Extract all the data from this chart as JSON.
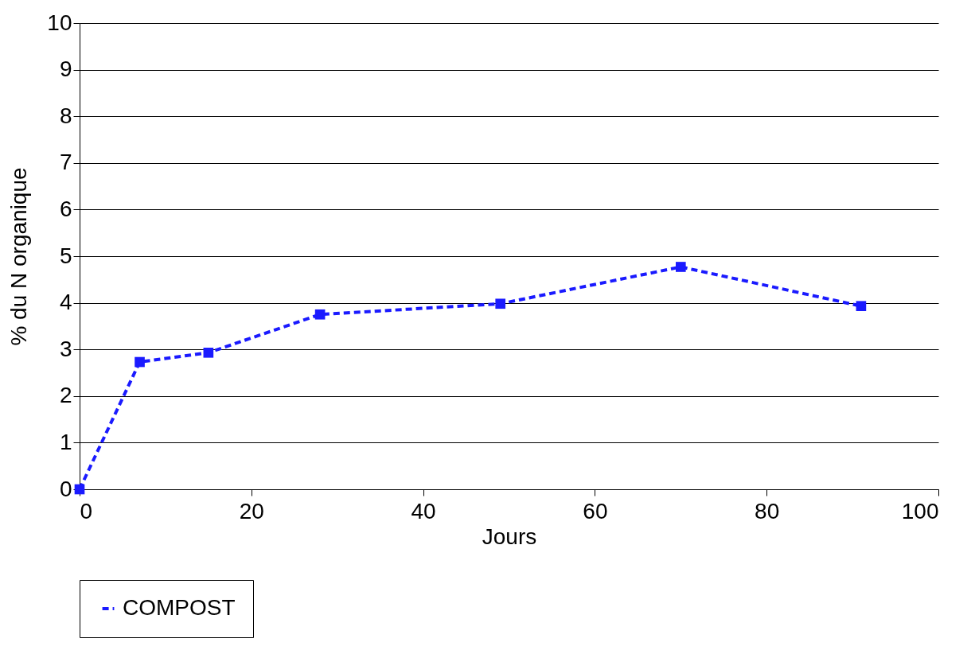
{
  "chart_data": {
    "type": "line",
    "xlabel": "Jours",
    "ylabel": "% du N organique",
    "x": [
      0,
      7,
      15,
      28,
      49,
      70,
      91
    ],
    "series": [
      {
        "name": "COMPOST",
        "color": "#1a1aff",
        "values": [
          0,
          2.73,
          2.93,
          3.75,
          3.98,
          4.77,
          3.93
        ]
      }
    ],
    "xlim": [
      0,
      100
    ],
    "xticks": [
      0,
      20,
      40,
      60,
      80,
      100
    ],
    "ylim": [
      0,
      10
    ],
    "yticks": [
      0,
      1,
      2,
      3,
      4,
      5,
      6,
      7,
      8,
      9,
      10
    ],
    "grid": "y",
    "legend": "bottom",
    "marker": "square",
    "line_style": "dashed"
  }
}
